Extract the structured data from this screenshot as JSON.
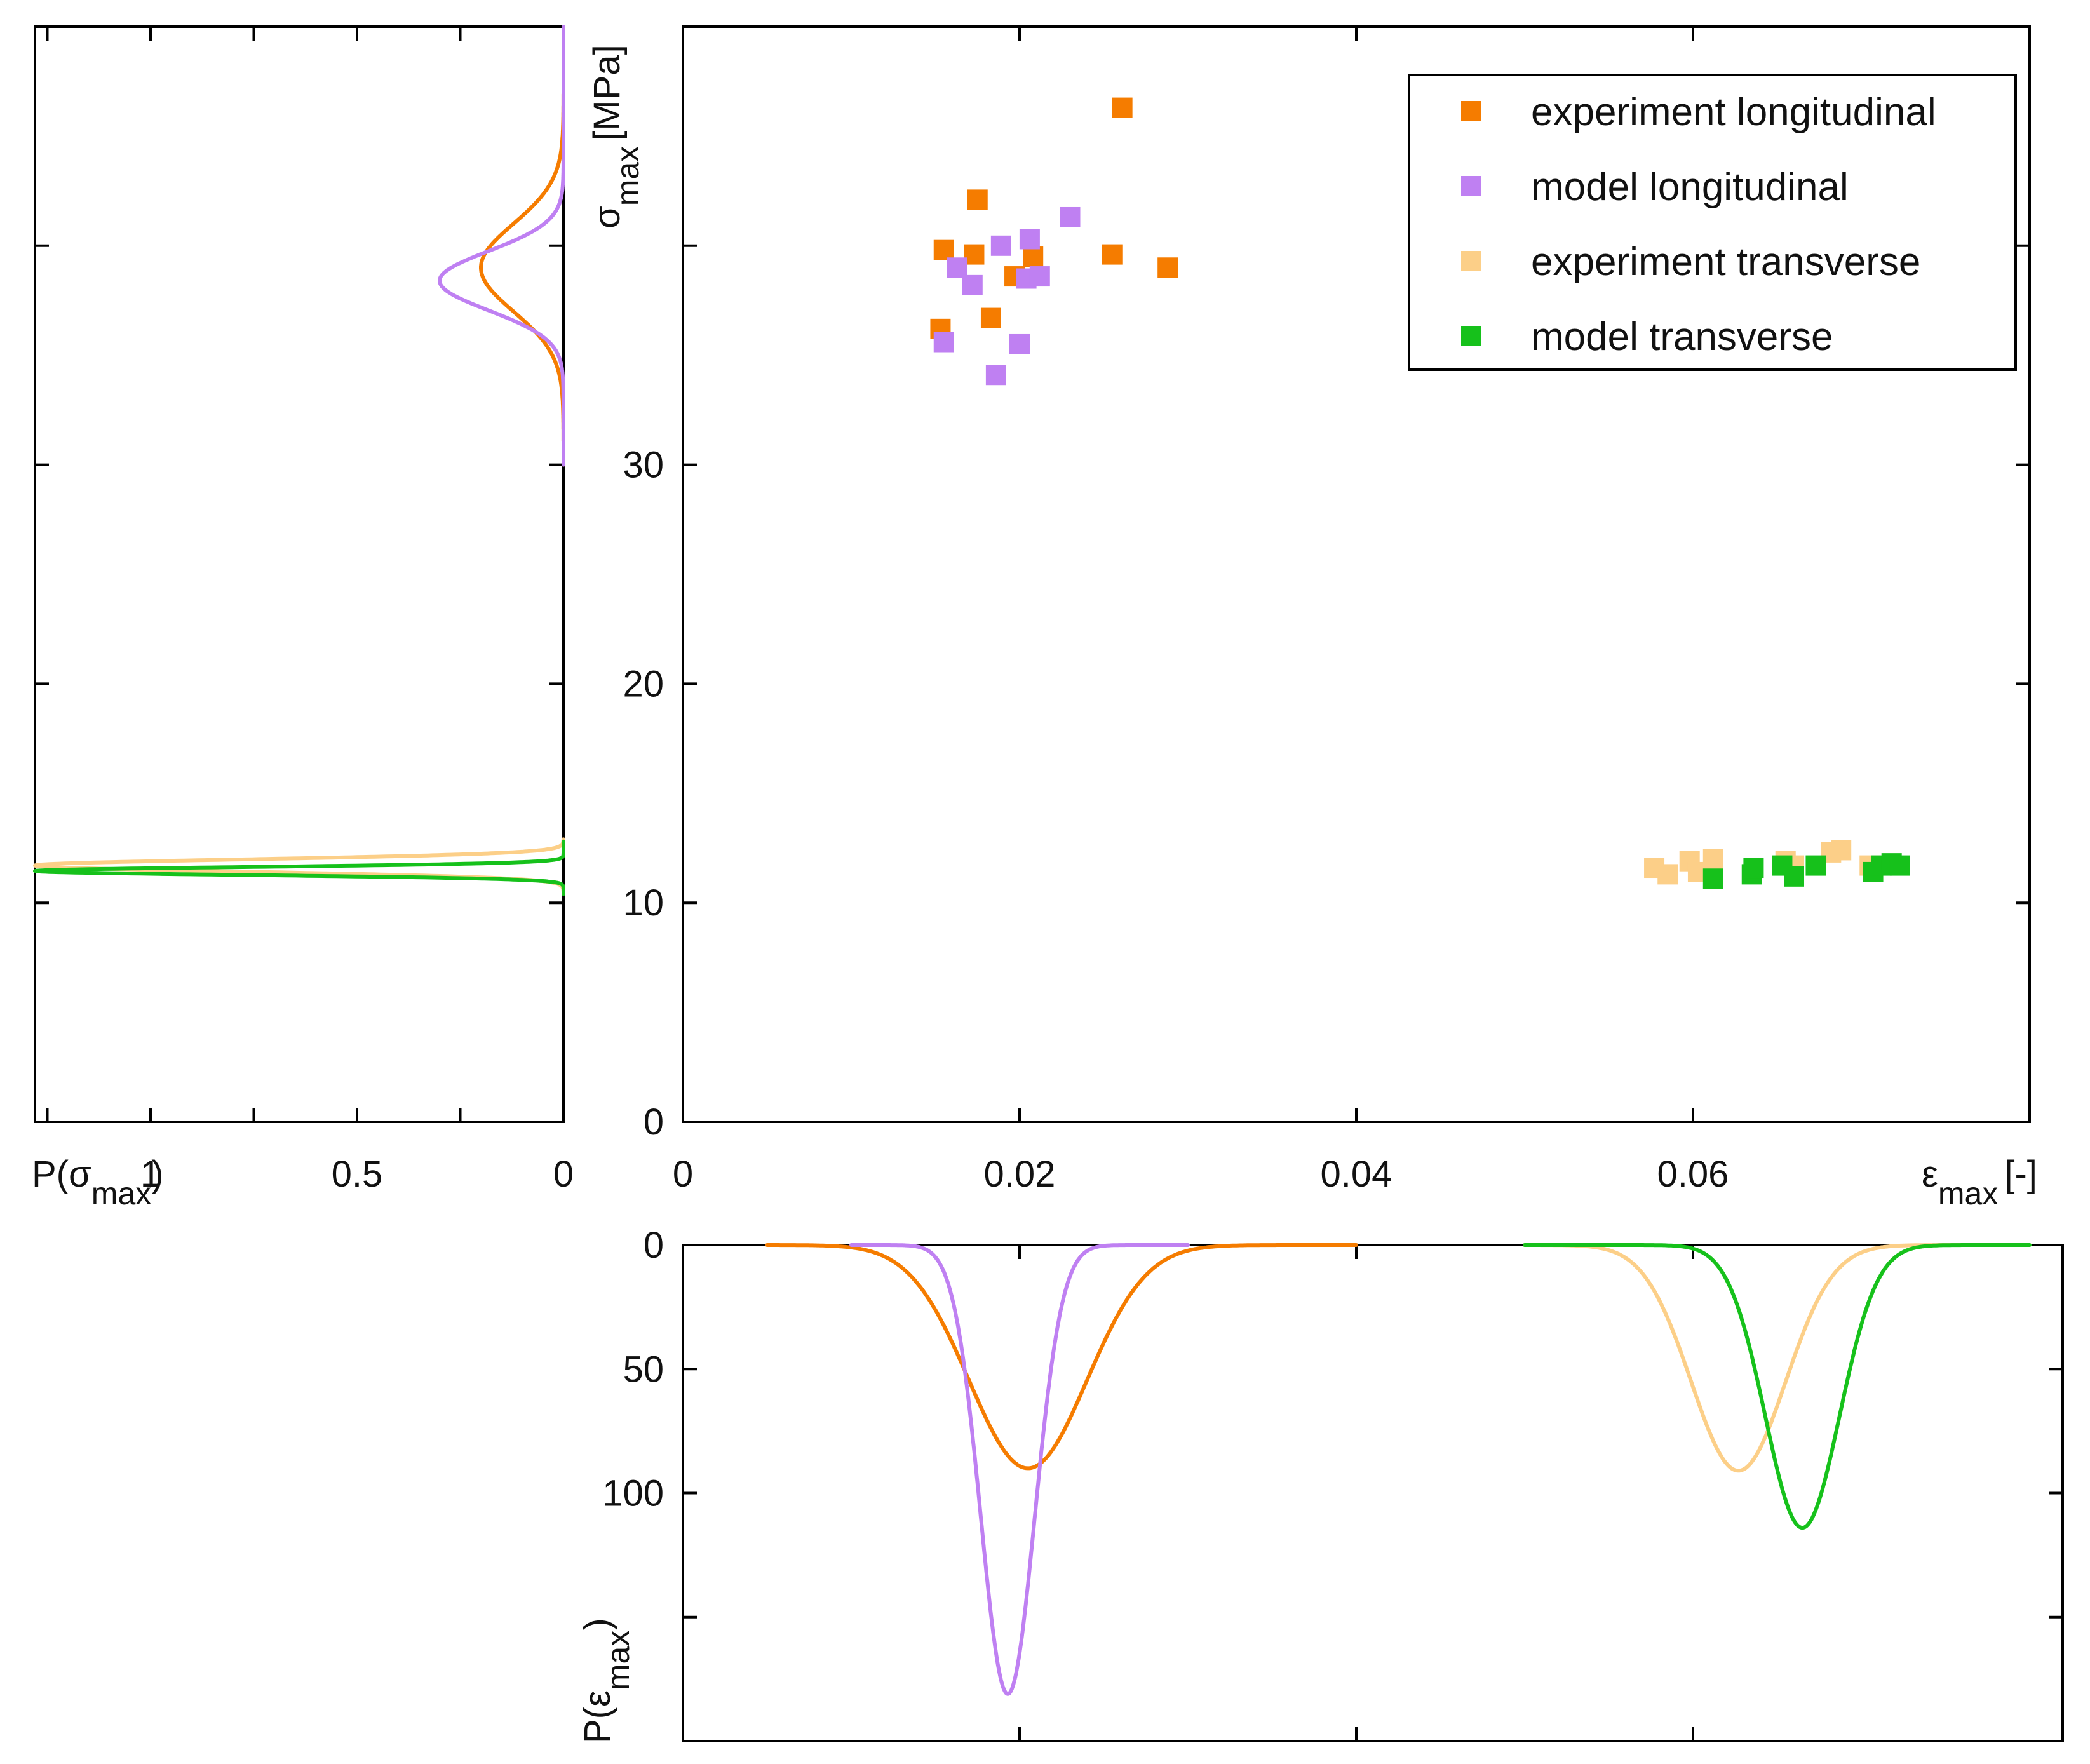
{
  "chart_data": {
    "type": "scatter",
    "colors": {
      "experiment_longitudinal": "#f57c00",
      "model_longitudinal": "#bf80f2",
      "experiment_transverse": "#fccf88",
      "model_transverse": "#16c11b"
    },
    "main": {
      "title": "",
      "xlabel": {
        "symbol": "ε",
        "sub": "max",
        "unit": "[-]"
      },
      "ylabel": {
        "symbol": "σ",
        "sub": "max",
        "unit": "[MPa]"
      },
      "xlim": [
        0,
        0.08
      ],
      "ylim": [
        0,
        50
      ],
      "xticks": [
        0,
        0.02,
        0.04,
        0.06
      ],
      "xtick_labels": [
        "0",
        "0.02",
        "0.04",
        "0.06"
      ],
      "yticks": [
        0,
        10,
        20,
        30,
        40
      ],
      "ytick_labels": [
        "0",
        "10",
        "20",
        "30",
        ""
      ],
      "legend_position": "top-right",
      "series": [
        {
          "key": "experiment_longitudinal",
          "name": "experiment longitudinal",
          "points": [
            [
              0.0261,
              46.3
            ],
            [
              0.0175,
              42.1
            ],
            [
              0.0155,
              39.8
            ],
            [
              0.0173,
              39.6
            ],
            [
              0.0208,
              39.5
            ],
            [
              0.0255,
              39.6
            ],
            [
              0.0288,
              39.0
            ],
            [
              0.0197,
              38.6
            ],
            [
              0.0183,
              36.7
            ],
            [
              0.0153,
              36.2
            ]
          ]
        },
        {
          "key": "model_longitudinal",
          "name": "model longitudinal",
          "points": [
            [
              0.023,
              41.3
            ],
            [
              0.0206,
              40.3
            ],
            [
              0.0189,
              40.0
            ],
            [
              0.0163,
              39.0
            ],
            [
              0.0172,
              38.2
            ],
            [
              0.0204,
              38.5
            ],
            [
              0.0212,
              38.6
            ],
            [
              0.0155,
              35.6
            ],
            [
              0.02,
              35.5
            ],
            [
              0.0186,
              34.1
            ]
          ]
        },
        {
          "key": "experiment_transverse",
          "name": "experiment transverse",
          "points": [
            [
              0.0577,
              11.6
            ],
            [
              0.0585,
              11.3
            ],
            [
              0.0598,
              11.9
            ],
            [
              0.0603,
              11.4
            ],
            [
              0.0612,
              12.0
            ],
            [
              0.0655,
              11.9
            ],
            [
              0.066,
              11.7
            ],
            [
              0.0682,
              12.3
            ],
            [
              0.0688,
              12.4
            ],
            [
              0.0705,
              11.7
            ]
          ]
        },
        {
          "key": "model_transverse",
          "name": "model transverse",
          "points": [
            [
              0.0612,
              11.1
            ],
            [
              0.0635,
              11.3
            ],
            [
              0.0636,
              11.6
            ],
            [
              0.0653,
              11.7
            ],
            [
              0.066,
              11.2
            ],
            [
              0.0673,
              11.7
            ],
            [
              0.0707,
              11.4
            ],
            [
              0.0712,
              11.7
            ],
            [
              0.0718,
              11.8
            ],
            [
              0.0723,
              11.7
            ]
          ]
        }
      ]
    },
    "left": {
      "xlabel": {
        "symbol": "P(σ",
        "sub": "max",
        "close": ")"
      },
      "xlim": [
        1.28,
        0
      ],
      "ylim": [
        0,
        50
      ],
      "xticks": [
        1.25,
        1,
        0.75,
        0.5,
        0.25,
        0
      ],
      "xtick_labels": [
        "",
        "1",
        "",
        "0.5",
        "",
        "0"
      ],
      "yticks": [
        0,
        10,
        20,
        30,
        40,
        50
      ],
      "curves": [
        {
          "key": "experiment_longitudinal",
          "mean": 39.0,
          "sd": 2.0,
          "amplitude": 0.2,
          "range": [
            30,
            50
          ]
        },
        {
          "key": "model_longitudinal",
          "mean": 38.4,
          "sd": 1.35,
          "amplitude": 0.3,
          "range": [
            30,
            50
          ]
        },
        {
          "key": "experiment_transverse",
          "mean": 11.7,
          "sd": 0.28,
          "amplitude": 1.28,
          "range": [
            10.5,
            12.9
          ]
        },
        {
          "key": "model_transverse",
          "mean": 11.45,
          "sd": 0.18,
          "amplitude": 1.28,
          "range": [
            10.4,
            12.8
          ]
        }
      ]
    },
    "bottom": {
      "ylabel": {
        "symbol": "P(ε",
        "sub": "max",
        "close": ")"
      },
      "xlim": [
        0,
        0.08
      ],
      "ylim": [
        0,
        200
      ],
      "yticks": [
        0,
        50,
        100,
        150
      ],
      "ytick_labels": [
        "0",
        "50",
        "100",
        ""
      ],
      "xticks": [
        0.02,
        0.04,
        0.06
      ],
      "curves": [
        {
          "key": "experiment_longitudinal",
          "mean": 0.0205,
          "sd": 0.0035,
          "amplitude": 90,
          "range": [
            0.005,
            0.04
          ]
        },
        {
          "key": "model_longitudinal",
          "mean": 0.0193,
          "sd": 0.0016,
          "amplitude": 181,
          "range": [
            0.01,
            0.03
          ]
        },
        {
          "key": "experiment_transverse",
          "mean": 0.0627,
          "sd": 0.0028,
          "amplitude": 91,
          "range": [
            0.05,
            0.08
          ]
        },
        {
          "key": "model_transverse",
          "mean": 0.0665,
          "sd": 0.0022,
          "amplitude": 114,
          "range": [
            0.05,
            0.08
          ]
        }
      ]
    }
  }
}
